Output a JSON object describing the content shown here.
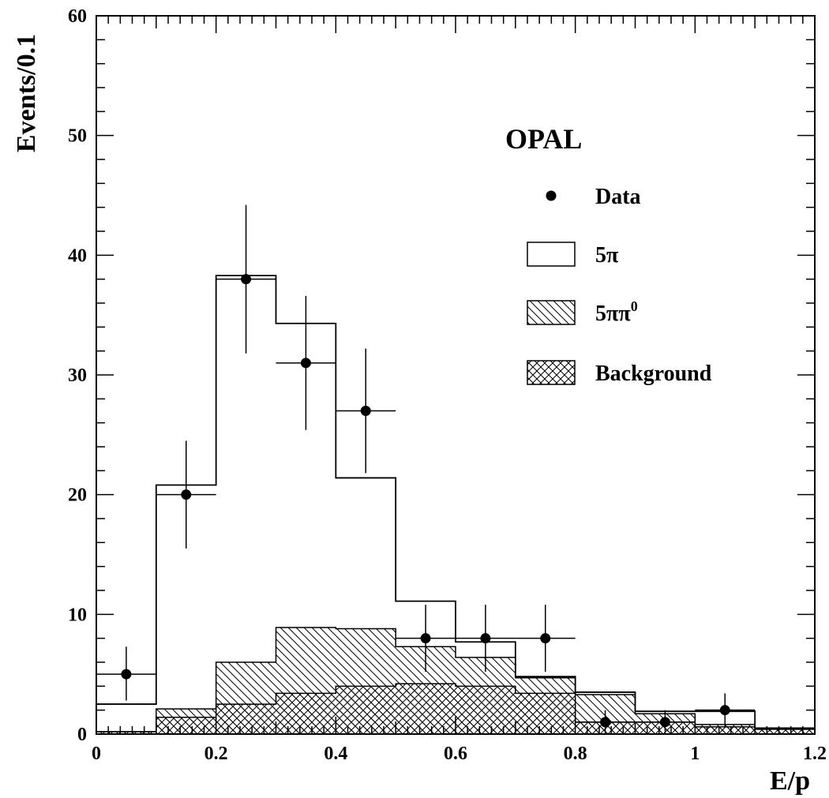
{
  "chart_data": {
    "type": "histogram",
    "experiment_label": "OPAL",
    "xlabel": "E/p",
    "ylabel": "Events/0.1",
    "xlim": [
      0,
      1.2
    ],
    "ylim": [
      0,
      60
    ],
    "x_ticks": [
      {
        "value": 0,
        "label": "0"
      },
      {
        "value": 0.2,
        "label": "0.2"
      },
      {
        "value": 0.4,
        "label": "0.4"
      },
      {
        "value": 0.6,
        "label": "0.6"
      },
      {
        "value": 0.8,
        "label": "0.8"
      },
      {
        "value": 1.0,
        "label": "1"
      },
      {
        "value": 1.2,
        "label": "1.2"
      }
    ],
    "y_ticks": [
      {
        "value": 0,
        "label": "0"
      },
      {
        "value": 10,
        "label": "10"
      },
      {
        "value": 20,
        "label": "20"
      },
      {
        "value": 30,
        "label": "30"
      },
      {
        "value": 40,
        "label": "40"
      },
      {
        "value": 50,
        "label": "50"
      },
      {
        "value": 60,
        "label": "60"
      }
    ],
    "bin_edges": [
      0,
      0.1,
      0.2,
      0.3,
      0.4,
      0.5,
      0.6,
      0.7,
      0.8,
      0.9,
      1.0,
      1.1,
      1.2
    ],
    "stacks": {
      "background": [
        0.2,
        1.4,
        2.5,
        3.4,
        4.0,
        4.2,
        4.0,
        3.4,
        1.0,
        1.0,
        0.6,
        0.4
      ],
      "five_pi_pi0_cumulative": [
        0.2,
        2.1,
        6.0,
        8.9,
        8.8,
        7.3,
        6.4,
        4.7,
        3.3,
        1.7,
        0.8,
        0.4
      ],
      "total_cumulative": [
        2.5,
        20.8,
        38.3,
        34.3,
        21.4,
        11.1,
        7.7,
        4.8,
        3.5,
        1.9,
        1.9,
        0.5
      ]
    },
    "data_points": [
      {
        "x": 0.05,
        "y": 5,
        "err_low": 2.2,
        "err_high": 2.3
      },
      {
        "x": 0.15,
        "y": 20,
        "err_low": 4.5,
        "err_high": 4.5
      },
      {
        "x": 0.25,
        "y": 38,
        "err_low": 6.2,
        "err_high": 6.2
      },
      {
        "x": 0.35,
        "y": 31,
        "err_low": 5.6,
        "err_high": 5.6
      },
      {
        "x": 0.45,
        "y": 27,
        "err_low": 5.2,
        "err_high": 5.2
      },
      {
        "x": 0.55,
        "y": 8,
        "err_low": 2.8,
        "err_high": 2.8
      },
      {
        "x": 0.65,
        "y": 8,
        "err_low": 2.8,
        "err_high": 2.8
      },
      {
        "x": 0.75,
        "y": 8,
        "err_low": 2.8,
        "err_high": 2.8
      },
      {
        "x": 0.85,
        "y": 1,
        "err_low": 1.0,
        "err_high": 1.0
      },
      {
        "x": 0.95,
        "y": 1,
        "err_low": 1.0,
        "err_high": 1.0
      },
      {
        "x": 1.05,
        "y": 2,
        "err_low": 1.4,
        "err_high": 1.4
      }
    ],
    "legend": {
      "placement": "upper-right",
      "entries": [
        {
          "kind": "marker",
          "label": "Data"
        },
        {
          "kind": "open-box",
          "label": "5π"
        },
        {
          "kind": "hatched-box",
          "label": "5ππ",
          "superscript": "0"
        },
        {
          "kind": "crosshatched-box",
          "label": "Background"
        }
      ]
    }
  }
}
